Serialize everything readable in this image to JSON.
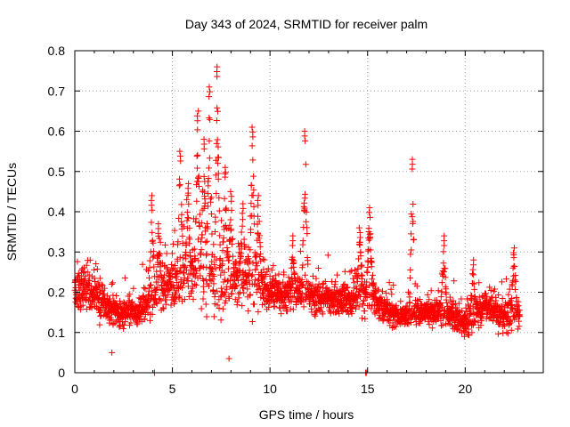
{
  "chart_data": {
    "type": "scatter",
    "title": "Day 343 of 2024, SRMTID for receiver palm",
    "xlabel": "GPS time / hours",
    "ylabel": "SRMTID / TECUs",
    "xlim": [
      0,
      24
    ],
    "ylim": [
      0,
      0.8
    ],
    "xticks": [
      0,
      5,
      10,
      15,
      20
    ],
    "xtick_labels": [
      "0",
      "5",
      "10",
      "15",
      "20"
    ],
    "yticks": [
      0,
      0.1,
      0.2,
      0.3,
      0.4,
      0.5,
      0.6,
      0.7,
      0.8
    ],
    "ytick_labels": [
      "0",
      "0.1",
      "0.2",
      "0.3",
      "0.4",
      "0.5",
      "0.6",
      "0.7",
      "0.8"
    ],
    "grid": true,
    "marker": "+",
    "marker_color": "#ff0000",
    "seed": 343,
    "baseline_profile": {
      "hours": [
        0.0,
        1.0,
        2.0,
        3.0,
        4.0,
        5.0,
        6.0,
        7.0,
        8.0,
        9.0,
        10.0,
        11.0,
        12.0,
        13.0,
        14.0,
        15.0,
        16.0,
        17.0,
        18.0,
        19.0,
        20.0,
        21.0,
        22.0,
        22.8
      ],
      "center": [
        0.21,
        0.2,
        0.15,
        0.15,
        0.18,
        0.22,
        0.24,
        0.22,
        0.22,
        0.22,
        0.2,
        0.2,
        0.19,
        0.18,
        0.18,
        0.2,
        0.15,
        0.14,
        0.15,
        0.15,
        0.12,
        0.17,
        0.14,
        0.15
      ],
      "spread": [
        0.07,
        0.06,
        0.04,
        0.04,
        0.06,
        0.08,
        0.1,
        0.1,
        0.09,
        0.08,
        0.06,
        0.06,
        0.05,
        0.05,
        0.05,
        0.07,
        0.04,
        0.04,
        0.04,
        0.04,
        0.04,
        0.05,
        0.05,
        0.05
      ]
    },
    "end_hour": 22.8,
    "sample_step_hours": 0.009,
    "spikes": [
      {
        "x": 3.95,
        "y": 0.44
      },
      {
        "x": 4.3,
        "y": 0.37
      },
      {
        "x": 5.4,
        "y": 0.55
      },
      {
        "x": 5.8,
        "y": 0.47
      },
      {
        "x": 6.3,
        "y": 0.65
      },
      {
        "x": 6.6,
        "y": 0.58
      },
      {
        "x": 6.9,
        "y": 0.71
      },
      {
        "x": 7.3,
        "y": 0.76
      },
      {
        "x": 7.7,
        "y": 0.51
      },
      {
        "x": 8.0,
        "y": 0.45
      },
      {
        "x": 8.6,
        "y": 0.42
      },
      {
        "x": 9.1,
        "y": 0.61
      },
      {
        "x": 9.4,
        "y": 0.44
      },
      {
        "x": 11.15,
        "y": 0.34
      },
      {
        "x": 11.8,
        "y": 0.6
      },
      {
        "x": 14.6,
        "y": 0.36
      },
      {
        "x": 15.1,
        "y": 0.41
      },
      {
        "x": 17.3,
        "y": 0.53
      },
      {
        "x": 18.9,
        "y": 0.34
      },
      {
        "x": 20.4,
        "y": 0.28
      },
      {
        "x": 22.5,
        "y": 0.31
      }
    ],
    "outliers": [
      {
        "x": 4.08,
        "y": 0.0
      },
      {
        "x": 14.9,
        "y": 0.0
      },
      {
        "x": 14.95,
        "y": 0.0
      },
      {
        "x": 7.9,
        "y": 0.035
      },
      {
        "x": 1.9,
        "y": 0.05
      }
    ]
  }
}
